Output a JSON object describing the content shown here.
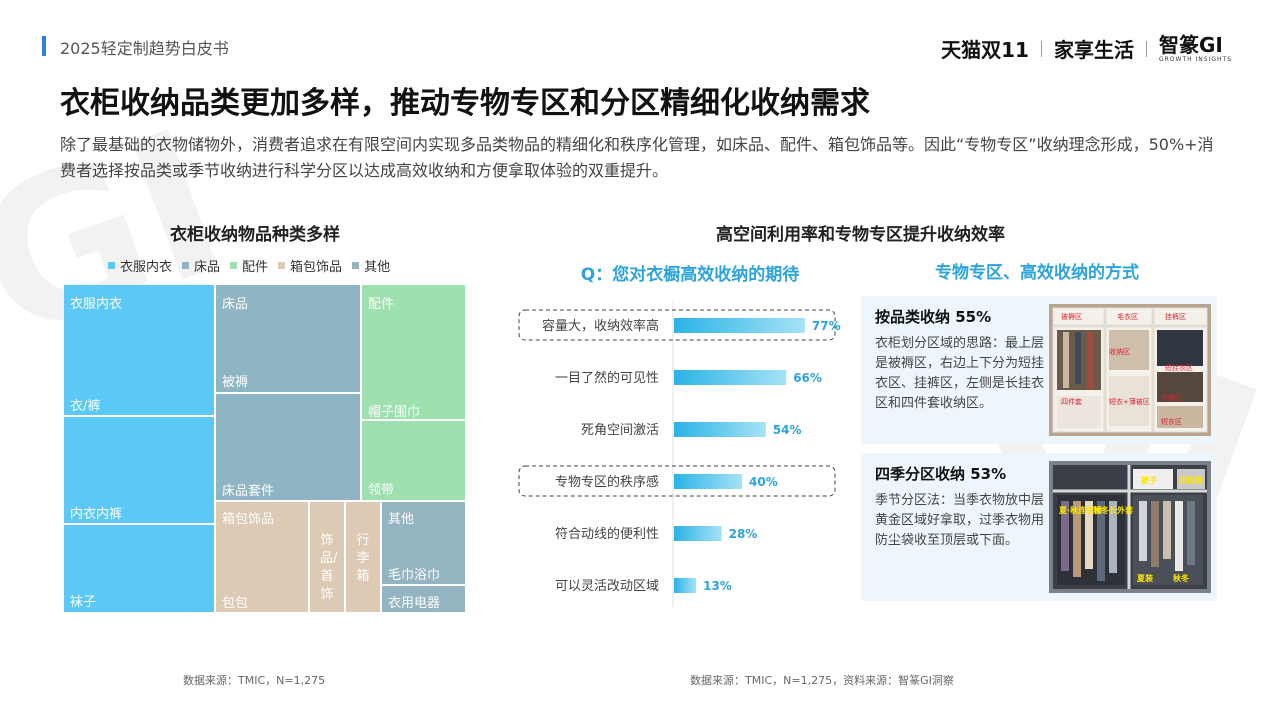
{
  "header": {
    "report_title": "2025轻定制趋势白皮书",
    "brand_tmall": "天猫双11",
    "brand_home": "家享生活",
    "brand_gi": "智篆GI",
    "brand_gi_sub": "GROWTH INSIGHTS"
  },
  "page": {
    "title": "衣柜收纳品类更加多样，推动专物专区和分区精细化收纳需求",
    "description": "除了最基础的衣物储物外，消费者追求在有限空间内实现多品类物品的精细化和秩序化管理，如床品、配件、箱包饰品等。因此“专物专区”收纳理念形成，50%+消费者选择按品类或季节收纳进行科学分区以达成高效收纳和方便拿取体验的双重提升。"
  },
  "left": {
    "section_title": "衣柜收纳物品种类多样",
    "source": "数据来源：TMIC，N=1,275"
  },
  "right": {
    "section_title": "高空间利用率和专物专区提升收纳效率",
    "question": "Q：您对衣橱高效收纳的期待",
    "method_title": "专物专区、高效收纳的方式",
    "source": "数据来源：TMIC，N=1,275，资料来源：智篆GI洞察",
    "cards": [
      {
        "title": "按品类收纳 55%",
        "text": "衣柜划分区域的思路：最上层是被褥区，右边上下分为短挂衣区、挂裤区，左侧是长挂衣区和四件套收纳区。",
        "image_labels": [
          "被褥区",
          "毛衣区",
          "挂裤区",
          "短挂衣区",
          "收纳区",
          "四件套",
          "短衣+薄被区",
          "衣服区",
          "短衣区"
        ]
      },
      {
        "title": "四季分区收纳 53%",
        "text": "季节分区法：当季衣物放中层黄金区域好拿取，过季衣物用防尘袋收至顶层或下面。",
        "image_labels": [
          "被子",
          "四件套",
          "夏·秋连衣裙",
          "秋冬长外套",
          "夏装",
          "秋冬"
        ]
      }
    ]
  },
  "chart_data": [
    {
      "type": "treemap",
      "title": "衣柜收纳物品种类多样",
      "legend": [
        {
          "name": "衣服内衣",
          "color": "#5bc8f5"
        },
        {
          "name": "床品",
          "color": "#8fb4c4"
        },
        {
          "name": "配件",
          "color": "#9ee0ae"
        },
        {
          "name": "箱包饰品",
          "color": "#dccab4"
        },
        {
          "name": "其他",
          "color": "#95b4c1"
        }
      ],
      "groups": [
        {
          "name": "衣服内衣",
          "items": [
            "衣服内衣",
            "衣/裤",
            "内衣内裤",
            "袜子"
          ]
        },
        {
          "name": "床品",
          "items": [
            "床品",
            "被褥",
            "床品套件"
          ]
        },
        {
          "name": "配件",
          "items": [
            "配件",
            "帽子围巾",
            "领带"
          ]
        },
        {
          "name": "箱包饰品",
          "items": [
            "箱包饰品",
            "包包",
            "饰品/首饰",
            "行李箱"
          ]
        },
        {
          "name": "其他",
          "items": [
            "其他",
            "毛巾浴巾",
            "衣用电器"
          ]
        }
      ]
    },
    {
      "type": "bar",
      "orientation": "horizontal",
      "title": "Q：您对衣橱高效收纳的期待",
      "unit": "%",
      "categories": [
        "容量大，收纳效率高",
        "一目了然的可见性",
        "死角空间激活",
        "专物专区的秩序感",
        "符合动线的便利性",
        "可以灵活改动区域"
      ],
      "values": [
        77,
        66,
        54,
        40,
        28,
        13
      ],
      "labels": [
        "77%",
        "66%",
        "54%",
        "40%",
        "28%",
        "13%"
      ],
      "highlighted": [
        "容量大，收纳效率高",
        "专物专区的秩序感"
      ],
      "xlim": [
        0,
        100
      ],
      "grid": false
    }
  ]
}
